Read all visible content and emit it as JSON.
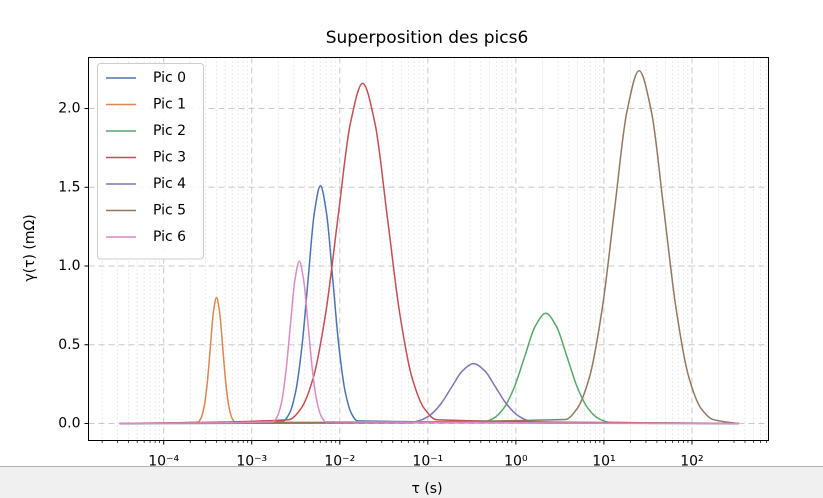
{
  "chart_data": {
    "type": "line",
    "title": "Superposition des pics6",
    "x_label": "τ (s)",
    "y_label": "γ(τ) (mΩ)",
    "x_scale": "log",
    "grid": true,
    "minor_grid": true,
    "legend": "upper left",
    "xlim": [
      1.4e-05,
      740
    ],
    "ylim": [
      -0.108,
      2.324
    ],
    "xticks": [
      {
        "value": 0.0001,
        "label": "10⁻⁴"
      },
      {
        "value": 0.001,
        "label": "10⁻³"
      },
      {
        "value": 0.01,
        "label": "10⁻²"
      },
      {
        "value": 0.1,
        "label": "10⁻¹"
      },
      {
        "value": 1,
        "label": "10⁰"
      },
      {
        "value": 10,
        "label": "10¹"
      },
      {
        "value": 100,
        "label": "10²"
      }
    ],
    "yticks": [
      {
        "value": 0,
        "label": "0.0"
      },
      {
        "value": 0.5,
        "label": "0.5"
      },
      {
        "value": 1,
        "label": "1.0"
      },
      {
        "value": 1.5,
        "label": "1.5"
      },
      {
        "value": 2,
        "label": "2.0"
      }
    ],
    "series": [
      {
        "name": "Pic 0",
        "color": "#4c72b0",
        "x": [
          3.16e-05,
          0.00229,
          0.00269,
          0.00316,
          0.00372,
          0.00437,
          0.00513,
          0.00603,
          0.00708,
          0.00832,
          0.00977,
          0.0115,
          0.0135,
          0.0158,
          340
        ],
        "values": [
          0,
          0.017,
          0.066,
          0.204,
          0.49,
          0.916,
          1.333,
          1.51,
          1.333,
          0.916,
          0.49,
          0.204,
          0.066,
          0.017,
          0
        ]
      },
      {
        "name": "Pic 1",
        "color": "#dd8452",
        "x": [
          3.16e-05,
          0.000245,
          0.000266,
          0.000288,
          0.000313,
          0.000339,
          0.000367,
          0.000398,
          0.000432,
          0.000468,
          0.000507,
          0.00055,
          0.000596,
          0.000646,
          340
        ],
        "values": [
          0,
          0.009,
          0.035,
          0.108,
          0.26,
          0.485,
          0.706,
          0.8,
          0.706,
          0.485,
          0.26,
          0.108,
          0.035,
          0.009,
          0
        ]
      },
      {
        "name": "Pic 2",
        "color": "#55a868",
        "x": [
          3.16e-05,
          0.417,
          0.55,
          0.724,
          0.955,
          1.26,
          1.66,
          2.19,
          2.88,
          3.8,
          5.01,
          6.61,
          8.71,
          11.5,
          340
        ],
        "values": [
          0,
          0.008,
          0.031,
          0.095,
          0.227,
          0.425,
          0.618,
          0.7,
          0.618,
          0.425,
          0.227,
          0.095,
          0.031,
          0.008,
          0
        ]
      },
      {
        "name": "Pic 3",
        "color": "#c44e52",
        "x": [
          3.16e-05,
          0.00263,
          0.00363,
          0.00501,
          0.00692,
          0.00955,
          0.0132,
          0.0182,
          0.0251,
          0.0347,
          0.0479,
          0.0661,
          0.0912,
          0.126,
          340
        ],
        "values": [
          0,
          0.024,
          0.095,
          0.292,
          0.701,
          1.31,
          1.906,
          2.16,
          1.906,
          1.31,
          0.701,
          0.292,
          0.095,
          0.024,
          0
        ]
      },
      {
        "name": "Pic 4",
        "color": "#8172b3",
        "x": [
          3.16e-05,
          0.0589,
          0.0785,
          0.105,
          0.14,
          0.186,
          0.248,
          0.331,
          0.442,
          0.589,
          0.785,
          1.05,
          1.4,
          1.86,
          340
        ],
        "values": [
          0,
          0.004,
          0.017,
          0.051,
          0.123,
          0.23,
          0.335,
          0.38,
          0.335,
          0.23,
          0.123,
          0.051,
          0.017,
          0.004,
          0
        ]
      },
      {
        "name": "Pic 5",
        "color": "#937860",
        "x": [
          3.16e-05,
          3.63,
          5.01,
          6.92,
          9.55,
          13.2,
          18.2,
          25.1,
          34.7,
          47.9,
          66.1,
          91.2,
          126,
          174,
          340
        ],
        "values": [
          0,
          0.025,
          0.098,
          0.303,
          0.727,
          1.359,
          1.977,
          2.24,
          1.977,
          1.359,
          0.727,
          0.303,
          0.098,
          0.025,
          0
        ]
      },
      {
        "name": "Pic 6",
        "color": "#da8bc3",
        "x": [
          3.16e-05,
          0.00174,
          0.00195,
          0.00219,
          0.00245,
          0.00275,
          0.00309,
          0.00347,
          0.00389,
          0.00437,
          0.0049,
          0.0055,
          0.00617,
          0.00692,
          340
        ],
        "values": [
          0,
          0.011,
          0.045,
          0.139,
          0.334,
          0.625,
          0.909,
          1.03,
          0.909,
          0.625,
          0.334,
          0.139,
          0.045,
          0.011,
          0
        ]
      }
    ]
  }
}
